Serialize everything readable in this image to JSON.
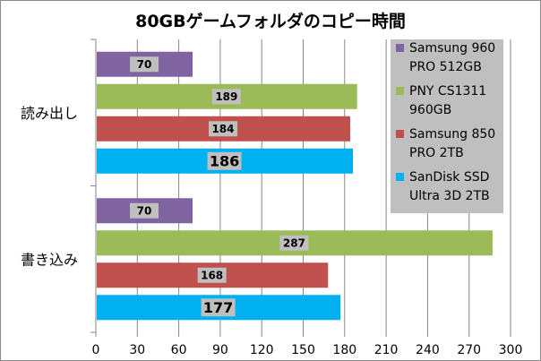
{
  "chart_data": {
    "type": "bar",
    "orientation": "horizontal",
    "title": "80GBゲームフォルダのコピー時間",
    "xlim": [
      0,
      300
    ],
    "xticks": [
      0,
      30,
      60,
      90,
      120,
      150,
      180,
      210,
      240,
      270,
      300
    ],
    "grid": true,
    "legend_position": "right",
    "categories": [
      "読み出し",
      "書き込み"
    ],
    "series": [
      {
        "name": "Samsung 960 PRO 512GB",
        "legend_lines": [
          "Samsung 960",
          "PRO 512GB"
        ],
        "color": "#8064a2",
        "values": [
          70,
          70
        ]
      },
      {
        "name": "PNY CS1311 960GB",
        "legend_lines": [
          "PNY CS1311",
          "960GB"
        ],
        "color": "#9bbb59",
        "values": [
          189,
          287
        ]
      },
      {
        "name": "Samsung 850 PRO 2TB",
        "legend_lines": [
          "Samsung 850",
          "PRO 2TB"
        ],
        "color": "#c0504d",
        "values": [
          184,
          168
        ]
      },
      {
        "name": "SanDisk SSD Ultra 3D 2TB",
        "legend_lines": [
          "SanDisk SSD",
          "Ultra 3D 2TB"
        ],
        "color": "#00b0f0",
        "values": [
          186,
          177
        ]
      }
    ],
    "data_label_background": "#bfbfbf"
  }
}
